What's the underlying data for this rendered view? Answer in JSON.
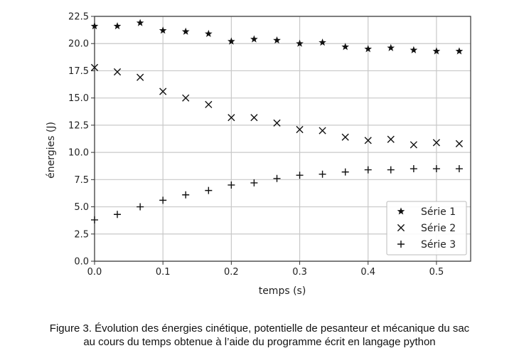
{
  "chart_data": {
    "type": "scatter",
    "title": "",
    "xlabel": "temps (s)",
    "ylabel": "énergies (J)",
    "xlim": [
      0.0,
      0.55
    ],
    "ylim": [
      0.0,
      22.5
    ],
    "xticks": [
      0.0,
      0.1,
      0.2,
      0.3,
      0.4,
      0.5
    ],
    "xtick_labels": [
      "0.0",
      "0.1",
      "0.2",
      "0.3",
      "0.4",
      "0.5"
    ],
    "yticks": [
      0.0,
      2.5,
      5.0,
      7.5,
      10.0,
      12.5,
      15.0,
      17.5,
      20.0,
      22.5
    ],
    "ytick_labels": [
      "0.0",
      "2.5",
      "5.0",
      "7.5",
      "10.0",
      "12.5",
      "15.0",
      "17.5",
      "20.0",
      "22.5"
    ],
    "grid": true,
    "legend_position": "bottom-right",
    "x": [
      0.0,
      0.0333,
      0.0667,
      0.1,
      0.1333,
      0.1667,
      0.2,
      0.2333,
      0.2667,
      0.3,
      0.3333,
      0.3667,
      0.4,
      0.4333,
      0.4667,
      0.5,
      0.5333
    ],
    "series": [
      {
        "name": "Série 1",
        "marker": "star",
        "color": "#000000",
        "values": [
          21.6,
          21.6,
          21.9,
          21.2,
          21.1,
          20.9,
          20.2,
          20.4,
          20.3,
          20.0,
          20.1,
          19.7,
          19.5,
          19.6,
          19.4,
          19.3,
          19.3
        ]
      },
      {
        "name": "Série 2",
        "marker": "x",
        "color": "#000000",
        "values": [
          17.8,
          17.4,
          16.9,
          15.6,
          15.0,
          14.4,
          13.2,
          13.2,
          12.7,
          12.1,
          12.0,
          11.4,
          11.1,
          11.2,
          10.7,
          10.9,
          10.8
        ]
      },
      {
        "name": "Série 3",
        "marker": "plus",
        "color": "#000000",
        "values": [
          3.8,
          4.3,
          5.0,
          5.6,
          6.1,
          6.5,
          7.0,
          7.2,
          7.6,
          7.9,
          8.0,
          8.2,
          8.4,
          8.4,
          8.5,
          8.5,
          8.5
        ]
      }
    ]
  },
  "caption": {
    "line1": "Figure 3. Évolution des énergies cinétique, potentielle de pesanteur et mécanique du sac",
    "line2": "au cours du temps obtenue à l’aide du programme écrit en langage python"
  }
}
